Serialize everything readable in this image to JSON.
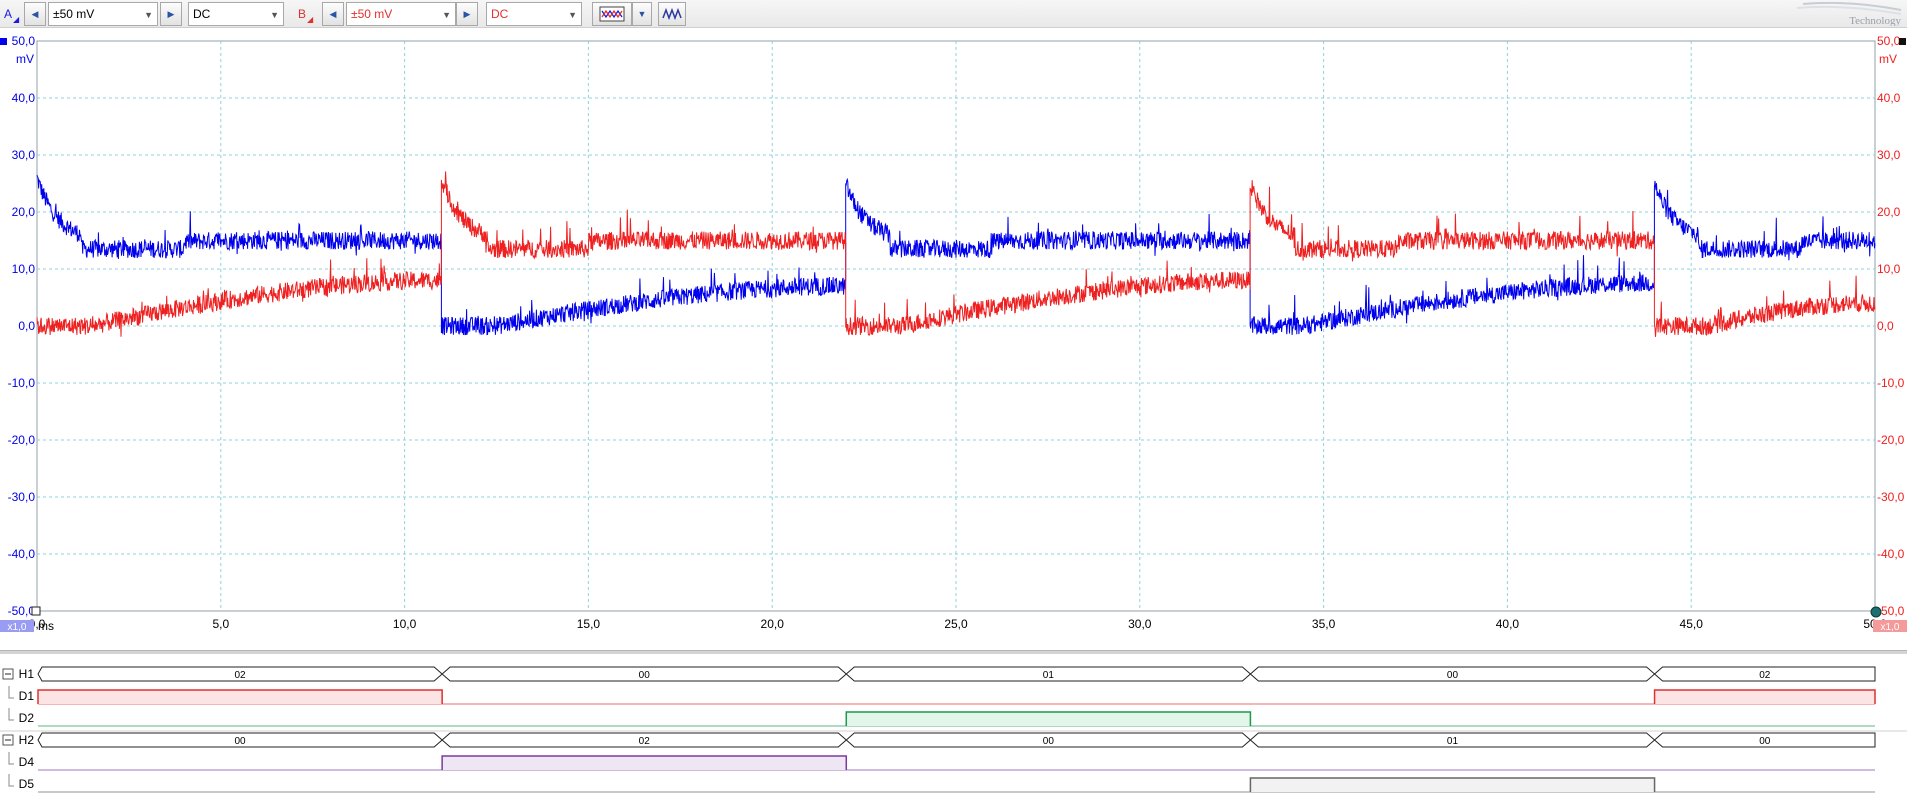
{
  "toolbar": {
    "channel_a": {
      "label": "A",
      "range": "±50 mV",
      "coupling": "DC",
      "color": "#1a1ae0"
    },
    "channel_b": {
      "label": "B",
      "range": "±50 mV",
      "coupling": "DC",
      "color": "#e03030"
    },
    "icons": [
      "prev-arrow-icon",
      "next-arrow-icon",
      "dropdown-caret-icon",
      "channel-options-icon",
      "waveform-math-icon"
    ],
    "logo_text": "Technology"
  },
  "chart": {
    "y_unit": "mV",
    "y_ticks": [
      "50,0",
      "40,0",
      "30,0",
      "20,0",
      "10,0",
      "0,0",
      "-10,0",
      "-20,0",
      "-30,0",
      "-40,0",
      "-50,0"
    ],
    "x_ticks": [
      "0,0",
      "5,0",
      "10,0",
      "15,0",
      "20,0",
      "25,0",
      "30,0",
      "35,0",
      "40,0",
      "45,0",
      "50,0"
    ],
    "x_unit": "ms",
    "zoom_left": "x1,0",
    "zoom_right": "x1,0",
    "colors": {
      "channel_a": "#0000ee",
      "channel_b": "#ee2020",
      "grid": "#8fd3dd"
    }
  },
  "chart_data": {
    "type": "line",
    "xlim": [
      0,
      50
    ],
    "ylim": [
      -50,
      50
    ],
    "xlabel": "ms",
    "ylabel": "mV",
    "grid": true,
    "series": [
      {
        "name": "A",
        "segments": [
          {
            "start": 0.0,
            "end": 11.0,
            "kind": "decay",
            "peak": 26,
            "settle": 15
          },
          {
            "start": 11.0,
            "end": 22.0,
            "kind": "ramp",
            "from": 0,
            "to": 7
          },
          {
            "start": 22.0,
            "end": 33.0,
            "kind": "decay",
            "peak": 25,
            "settle": 15
          },
          {
            "start": 33.0,
            "end": 44.0,
            "kind": "ramp",
            "from": 0,
            "to": 7.5
          },
          {
            "start": 44.0,
            "end": 50.0,
            "kind": "decay",
            "peak": 25,
            "settle": 15
          }
        ]
      },
      {
        "name": "B",
        "segments": [
          {
            "start": 0.0,
            "end": 11.0,
            "kind": "ramp",
            "from": 0,
            "to": 8
          },
          {
            "start": 11.0,
            "end": 22.0,
            "kind": "decay",
            "peak": 26,
            "settle": 15
          },
          {
            "start": 22.0,
            "end": 33.0,
            "kind": "ramp",
            "from": 0,
            "to": 8
          },
          {
            "start": 33.0,
            "end": 44.0,
            "kind": "decay",
            "peak": 25,
            "settle": 15
          },
          {
            "start": 44.0,
            "end": 50.0,
            "kind": "ramp",
            "from": 0,
            "to": 4
          }
        ]
      }
    ]
  },
  "digital": {
    "rows": [
      {
        "label": "H1",
        "type": "bus",
        "collapse": true,
        "segments": [
          {
            "from": 0,
            "to": 11,
            "value": "02"
          },
          {
            "from": 11,
            "to": 22,
            "value": "00"
          },
          {
            "from": 22,
            "to": 33,
            "value": "01"
          },
          {
            "from": 33,
            "to": 44,
            "value": "00"
          },
          {
            "from": 44,
            "to": 50,
            "value": "02"
          }
        ]
      },
      {
        "label": "D1",
        "type": "bit",
        "color": "#e03030",
        "fill": "#fde4e4",
        "high": [
          [
            0,
            11
          ],
          [
            44,
            50
          ]
        ]
      },
      {
        "label": "D2",
        "type": "bit",
        "color": "#1a9a4a",
        "fill": "#e2f6ea",
        "high": [
          [
            22,
            33
          ]
        ]
      },
      {
        "label": "H2",
        "type": "bus",
        "collapse": true,
        "segments": [
          {
            "from": 0,
            "to": 11,
            "value": "00"
          },
          {
            "from": 11,
            "to": 22,
            "value": "02"
          },
          {
            "from": 22,
            "to": 33,
            "value": "00"
          },
          {
            "from": 33,
            "to": 44,
            "value": "01"
          },
          {
            "from": 44,
            "to": 50,
            "value": "00"
          }
        ]
      },
      {
        "label": "D4",
        "type": "bit",
        "color": "#7a3aa0",
        "fill": "#efe6f4",
        "high": [
          [
            11,
            22
          ]
        ]
      },
      {
        "label": "D5",
        "type": "bit",
        "color": "#666666",
        "fill": "#f2f2f2",
        "high": [
          [
            33,
            44
          ]
        ]
      }
    ]
  }
}
